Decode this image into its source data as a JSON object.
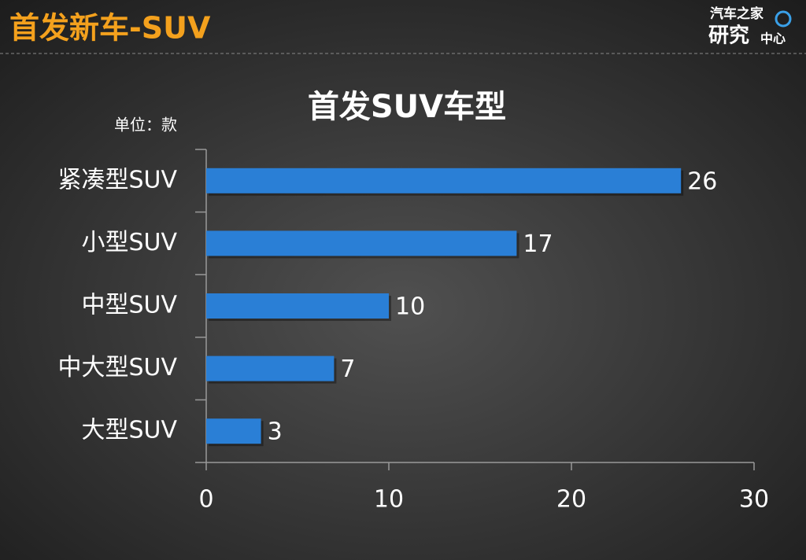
{
  "header": {
    "title": "首发新车-SUV",
    "logo": [
      "汽车之家",
      "研究",
      "中心"
    ]
  },
  "chart_data": {
    "type": "bar",
    "orientation": "horizontal",
    "title": "首发SUV车型",
    "unit_label": "单位：款",
    "categories": [
      "紧凑型SUV",
      "小型SUV",
      "中型SUV",
      "中大型SUV",
      "大型SUV"
    ],
    "values": [
      26,
      17,
      10,
      7,
      3
    ],
    "color": "#2a7fd6",
    "xlim": [
      0,
      30
    ],
    "xticks": [
      0,
      10,
      20,
      30
    ],
    "grid": false
  }
}
